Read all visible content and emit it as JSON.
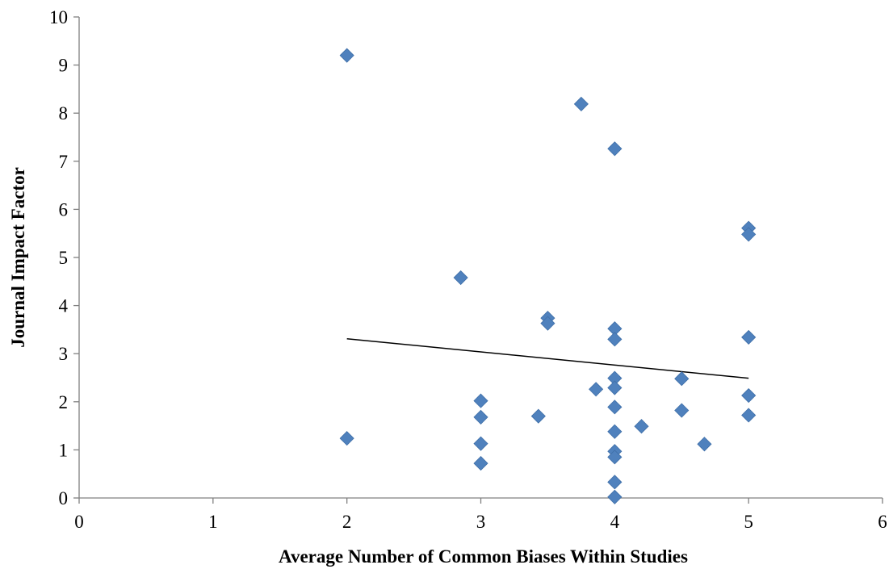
{
  "chart_data": {
    "type": "scatter",
    "title": "",
    "xlabel": "Average Number of Common Biases Within Studies",
    "ylabel": "Journal Impact Factor",
    "xlim": [
      0,
      6
    ],
    "ylim": [
      0,
      10
    ],
    "x_ticks": [
      0,
      1,
      2,
      3,
      4,
      5,
      6
    ],
    "y_ticks": [
      0,
      1,
      2,
      3,
      4,
      5,
      6,
      7,
      8,
      9,
      10
    ],
    "grid": false,
    "legend": "none",
    "marker_color": "#4f81bd",
    "marker_shape": "diamond",
    "points": [
      {
        "x": 2,
        "y": 9.2
      },
      {
        "x": 2,
        "y": 1.24
      },
      {
        "x": 2.85,
        "y": 4.58
      },
      {
        "x": 3,
        "y": 2.02
      },
      {
        "x": 3,
        "y": 1.68
      },
      {
        "x": 3,
        "y": 1.13
      },
      {
        "x": 3,
        "y": 0.72
      },
      {
        "x": 3.43,
        "y": 1.7
      },
      {
        "x": 3.5,
        "y": 3.74
      },
      {
        "x": 3.5,
        "y": 3.63
      },
      {
        "x": 3.75,
        "y": 8.19
      },
      {
        "x": 3.86,
        "y": 2.26
      },
      {
        "x": 4,
        "y": 7.26
      },
      {
        "x": 4,
        "y": 3.52
      },
      {
        "x": 4,
        "y": 3.3
      },
      {
        "x": 4,
        "y": 2.49
      },
      {
        "x": 4,
        "y": 2.29
      },
      {
        "x": 4,
        "y": 1.89
      },
      {
        "x": 4,
        "y": 1.38
      },
      {
        "x": 4,
        "y": 0.97
      },
      {
        "x": 4,
        "y": 0.85
      },
      {
        "x": 4,
        "y": 0.33
      },
      {
        "x": 4,
        "y": 0.02
      },
      {
        "x": 4.2,
        "y": 1.49
      },
      {
        "x": 4.5,
        "y": 2.48
      },
      {
        "x": 4.5,
        "y": 1.82
      },
      {
        "x": 4.67,
        "y": 1.12
      },
      {
        "x": 5,
        "y": 5.61
      },
      {
        "x": 5,
        "y": 5.48
      },
      {
        "x": 5,
        "y": 3.34
      },
      {
        "x": 5,
        "y": 2.13
      },
      {
        "x": 5,
        "y": 1.72
      }
    ],
    "trendline": {
      "type": "linear",
      "start": {
        "x": 2,
        "y": 3.31
      },
      "end": {
        "x": 5,
        "y": 2.49
      },
      "color": "#000000"
    }
  }
}
